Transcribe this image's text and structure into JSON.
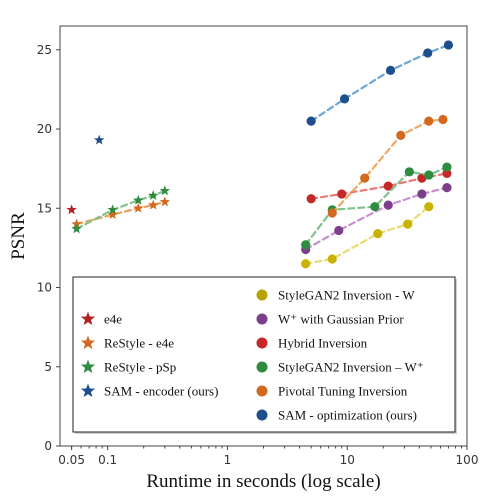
{
  "chart_data": {
    "type": "scatter",
    "xlabel": "Runtime in seconds (log scale)",
    "ylabel": "PSNR",
    "xscale": "log",
    "xlim": [
      0.04,
      100
    ],
    "ylim": [
      0,
      26.5
    ],
    "xticks": [
      {
        "value": 0.05,
        "label": "0.05"
      },
      {
        "value": 0.1,
        "label": "0.1"
      },
      {
        "value": 1,
        "label": "1"
      },
      {
        "value": 10,
        "label": "10"
      },
      {
        "value": 100,
        "label": "100"
      }
    ],
    "yticks": [
      {
        "value": 0,
        "label": "0"
      },
      {
        "value": 5,
        "label": "5"
      },
      {
        "value": 10,
        "label": "10"
      },
      {
        "value": 15,
        "label": "15"
      },
      {
        "value": 20,
        "label": "20"
      },
      {
        "value": 25,
        "label": "25"
      }
    ],
    "grid": false,
    "legend_placement": "lower-center",
    "legend_left": [
      {
        "name": "e4e",
        "marker": "star",
        "color": "#b22222"
      },
      {
        "name": "ReStyle - e4e",
        "marker": "star",
        "color": "#d2691e"
      },
      {
        "name": "ReStyle - pSp",
        "marker": "star",
        "color": "#2e8b3f"
      },
      {
        "name": "SAM - encoder (ours)",
        "marker": "star",
        "color": "#1f4e8c"
      }
    ],
    "legend_right": [
      {
        "name": "StyleGAN2 Inversion - W",
        "marker": "circle",
        "color": "#b8a200"
      },
      {
        "name": "W⁺ with Gaussian Prior",
        "marker": "circle",
        "color": "#7b3f8c"
      },
      {
        "name": "Hybrid Inversion",
        "marker": "circle",
        "color": "#c62828"
      },
      {
        "name": "StyleGAN2 Inversion – W⁺",
        "marker": "circle",
        "color": "#2e8b3f"
      },
      {
        "name": "Pivotal Tuning Inversion",
        "marker": "circle",
        "color": "#d2691e"
      },
      {
        "name": "SAM - optimization (ours)",
        "marker": "circle",
        "color": "#1f4e8c"
      }
    ],
    "series": [
      {
        "name": "e4e",
        "marker": "star",
        "color": "#b22222",
        "line": false,
        "points": [
          [
            0.05,
            14.9
          ]
        ]
      },
      {
        "name": "ReStyle - e4e",
        "marker": "star",
        "color": "#d2691e",
        "line": true,
        "line_color": "#e8a060",
        "points": [
          [
            0.055,
            14.0
          ],
          [
            0.11,
            14.6
          ],
          [
            0.18,
            15.0
          ],
          [
            0.24,
            15.2
          ],
          [
            0.3,
            15.4
          ]
        ]
      },
      {
        "name": "ReStyle - pSp",
        "marker": "star",
        "color": "#2e8b3f",
        "line": true,
        "line_color": "#7fc28a",
        "points": [
          [
            0.055,
            13.7
          ],
          [
            0.11,
            14.9
          ],
          [
            0.18,
            15.5
          ],
          [
            0.24,
            15.8
          ],
          [
            0.3,
            16.1
          ]
        ]
      },
      {
        "name": "SAM - encoder (ours)",
        "marker": "star",
        "color": "#1f4e8c",
        "line": false,
        "points": [
          [
            0.085,
            19.3
          ]
        ]
      },
      {
        "name": "StyleGAN2 Inversion - W",
        "marker": "circle",
        "color": "#c8b400",
        "line": true,
        "line_color": "#e8dc70",
        "points": [
          [
            4.5,
            11.5
          ],
          [
            7.5,
            11.8
          ],
          [
            18,
            13.4
          ],
          [
            32,
            14.0
          ],
          [
            48,
            15.1
          ]
        ]
      },
      {
        "name": "W⁺ with Gaussian Prior",
        "marker": "circle",
        "color": "#7b3f8c",
        "line": true,
        "line_color": "#c58fd0",
        "points": [
          [
            4.5,
            12.4
          ],
          [
            8.5,
            13.6
          ],
          [
            22,
            15.2
          ],
          [
            42,
            15.9
          ],
          [
            68,
            16.3
          ]
        ]
      },
      {
        "name": "Hybrid Inversion",
        "marker": "circle",
        "color": "#c62828",
        "line": true,
        "line_color": "#ee7777",
        "points": [
          [
            5,
            15.6
          ],
          [
            9,
            15.9
          ],
          [
            22,
            16.4
          ],
          [
            42,
            16.9
          ],
          [
            68,
            17.2
          ]
        ]
      },
      {
        "name": "StyleGAN2 Inversion – W⁺",
        "marker": "circle",
        "color": "#2e8b3f",
        "line": true,
        "line_color": "#7fc28a",
        "points": [
          [
            4.5,
            12.7
          ],
          [
            7.5,
            14.9
          ],
          [
            17,
            15.1
          ],
          [
            33,
            17.3
          ],
          [
            48,
            17.1
          ],
          [
            68,
            17.6
          ]
        ]
      },
      {
        "name": "Pivotal Tuning Inversion",
        "marker": "circle",
        "color": "#d2691e",
        "line": true,
        "line_color": "#f0a860",
        "points": [
          [
            7.5,
            14.7
          ],
          [
            14,
            16.9
          ],
          [
            28,
            19.6
          ],
          [
            48,
            20.5
          ],
          [
            63,
            20.6
          ]
        ]
      },
      {
        "name": "SAM - optimization (ours)",
        "marker": "circle",
        "color": "#1f4e8c",
        "line": true,
        "line_color": "#6aa6d8",
        "points": [
          [
            5,
            20.5
          ],
          [
            9.5,
            21.9
          ],
          [
            23,
            23.7
          ],
          [
            47,
            24.8
          ],
          [
            70,
            25.3
          ]
        ]
      }
    ]
  }
}
